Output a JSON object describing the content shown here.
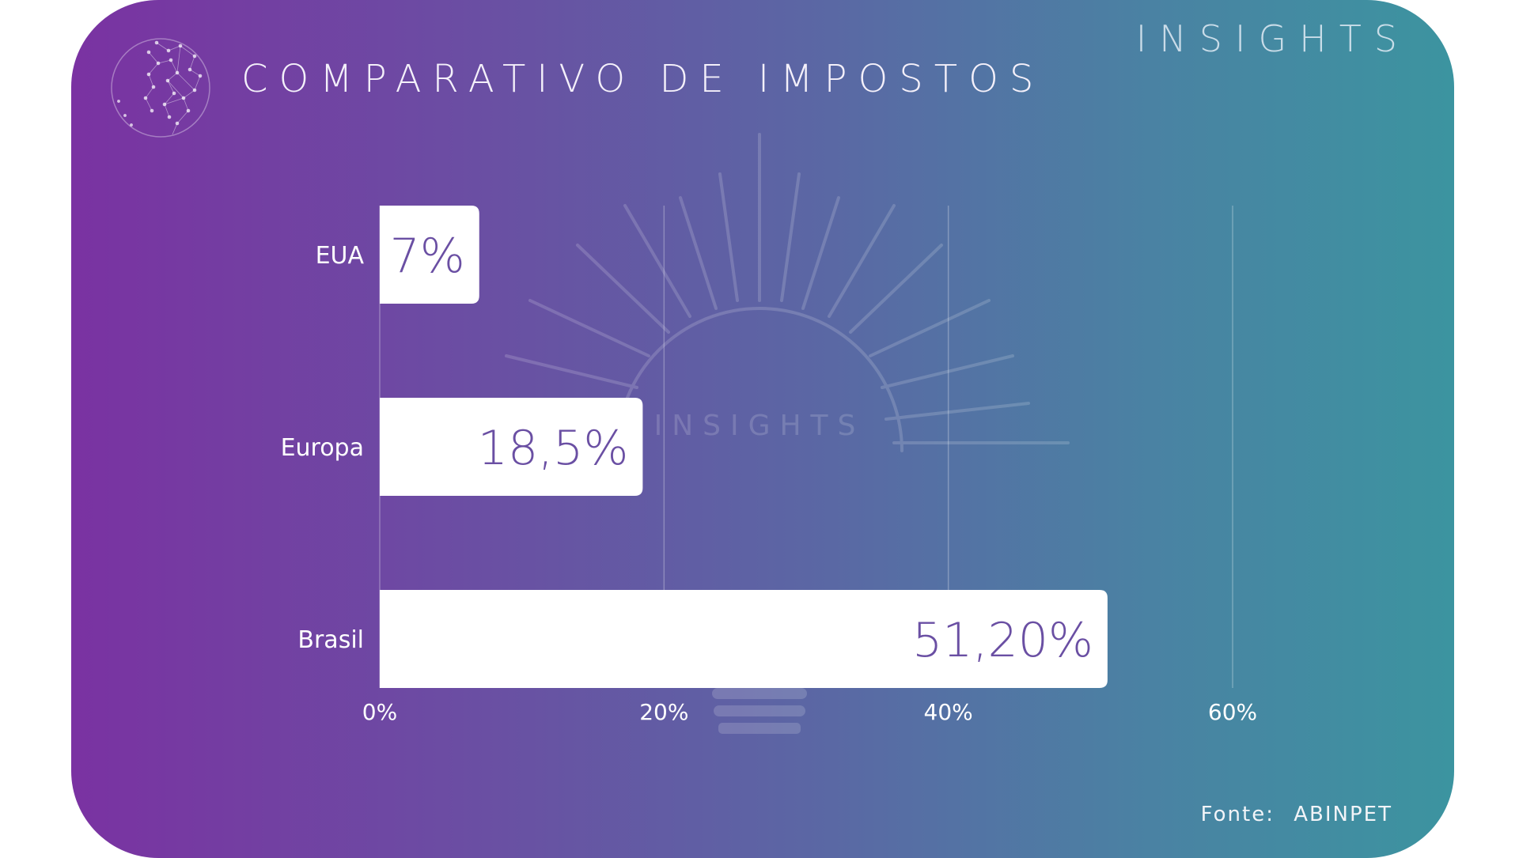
{
  "header": {
    "title": "COMPARATIVO DE IMPOSTOS",
    "brand": "INSIGHTS"
  },
  "watermark": {
    "text": "INSIGHTS",
    "icon": "lightbulb-icon"
  },
  "footer": {
    "source_label": "Fonte:",
    "source_value": "ABINPET"
  },
  "colors": {
    "gradient_start": "#7a32a2",
    "gradient_end": "#3c94a0",
    "bar_fill": "#ffffff",
    "bar_label": "#6a4fa3"
  },
  "chart_data": {
    "type": "bar",
    "orientation": "horizontal",
    "title": "COMPARATIVO DE IMPOSTOS",
    "categories": [
      "EUA",
      "Europa",
      "Brasil"
    ],
    "values": [
      7,
      18.5,
      51.2
    ],
    "value_labels": [
      "7%",
      "18,5%",
      "51,20%"
    ],
    "xlim": [
      0,
      60
    ],
    "xticks": [
      0,
      20,
      40,
      60
    ],
    "xtick_labels": [
      "0%",
      "20%",
      "40%",
      "60%"
    ],
    "xlabel": "",
    "ylabel": "",
    "grid": true
  }
}
